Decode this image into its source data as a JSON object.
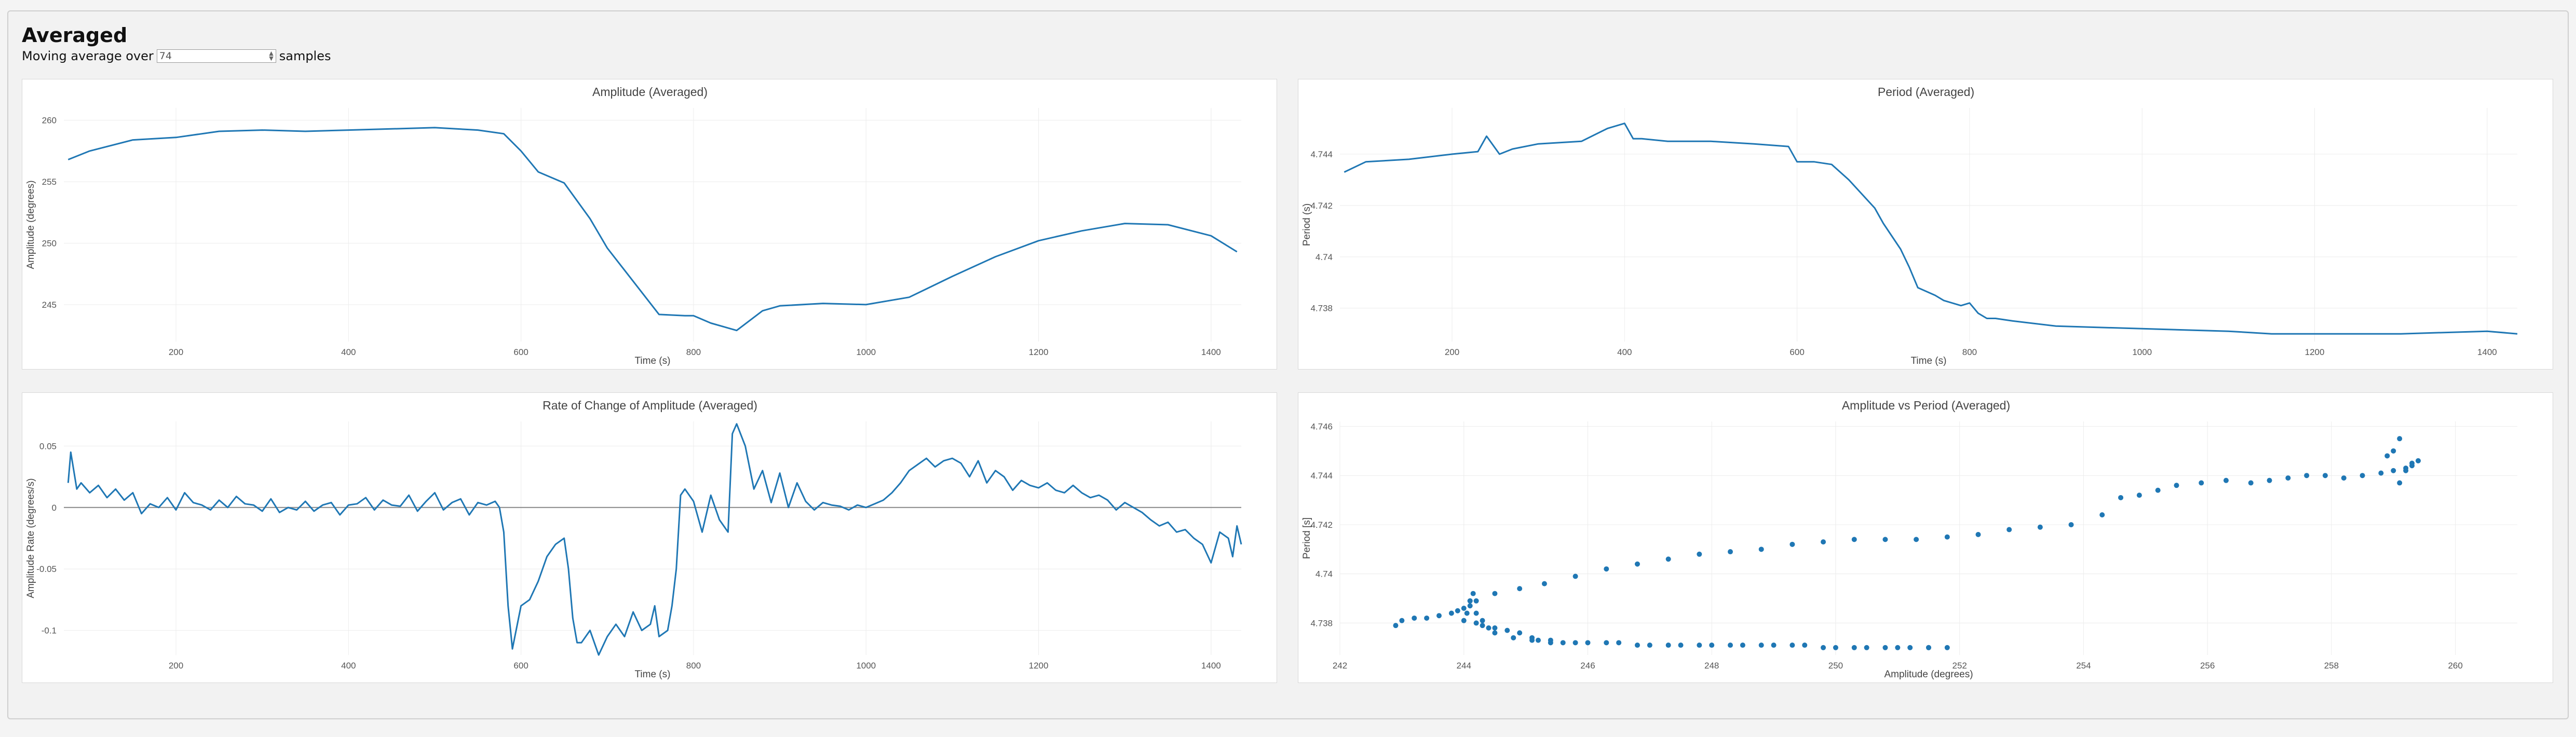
{
  "page": {
    "title": "Averaged"
  },
  "controls": {
    "label_before": "Moving average over",
    "value": "74",
    "label_after": "samples"
  },
  "colors": {
    "series": "#1f77b4",
    "grid": "#ececec",
    "axis_text": "#555"
  },
  "chart_data": [
    {
      "type": "line",
      "title": "Amplitude (Averaged)",
      "xlabel": "Time (s)",
      "ylabel": "Amplitude (degrees)",
      "xlim": [
        70,
        1435
      ],
      "ylim": [
        242,
        261
      ],
      "xticks": [
        200,
        400,
        600,
        800,
        1000,
        1200,
        1400
      ],
      "yticks": [
        245,
        250,
        255,
        260
      ],
      "series": [
        {
          "x": [
            75,
            100,
            150,
            200,
            250,
            300,
            350,
            400,
            450,
            500,
            550,
            580,
            600,
            620,
            650,
            680,
            700,
            720,
            760,
            790,
            800,
            820,
            850,
            880,
            900,
            950,
            1000,
            1050,
            1100,
            1150,
            1200,
            1250,
            1300,
            1350,
            1400,
            1430
          ],
          "y": [
            256.8,
            257.5,
            258.4,
            258.6,
            259.1,
            259.2,
            259.1,
            259.2,
            259.3,
            259.4,
            259.2,
            258.9,
            257.5,
            255.8,
            254.9,
            252.0,
            249.6,
            247.8,
            244.2,
            244.1,
            244.1,
            243.5,
            242.9,
            244.5,
            244.9,
            245.1,
            245.0,
            245.6,
            247.3,
            248.9,
            250.2,
            251.0,
            251.6,
            251.5,
            250.6,
            249.3
          ]
        }
      ]
    },
    {
      "type": "line",
      "title": "Period (Averaged)",
      "xlabel": "Time (s)",
      "ylabel": "Period (s)",
      "xlim": [
        70,
        1435
      ],
      "ylim": [
        4.7367,
        4.7458
      ],
      "xticks": [
        200,
        400,
        600,
        800,
        1000,
        1200,
        1400
      ],
      "yticks": [
        4.738,
        4.74,
        4.742,
        4.744
      ],
      "series": [
        {
          "x": [
            75,
            100,
            150,
            200,
            230,
            240,
            255,
            270,
            300,
            350,
            380,
            400,
            410,
            420,
            450,
            500,
            550,
            590,
            600,
            620,
            640,
            660,
            690,
            700,
            720,
            730,
            740,
            760,
            770,
            790,
            800,
            810,
            820,
            830,
            850,
            900,
            1000,
            1100,
            1150,
            1200,
            1300,
            1400,
            1435
          ],
          "y": [
            4.7433,
            4.7437,
            4.7438,
            4.744,
            4.7441,
            4.7447,
            4.744,
            4.7442,
            4.7444,
            4.7445,
            4.745,
            4.7452,
            4.7446,
            4.7446,
            4.7445,
            4.7445,
            4.7444,
            4.7443,
            4.7437,
            4.7437,
            4.7436,
            4.743,
            4.7419,
            4.7413,
            4.7403,
            4.7396,
            4.7388,
            4.7385,
            4.7383,
            4.7381,
            4.7382,
            4.7378,
            4.7376,
            4.7376,
            4.7375,
            4.7373,
            4.7372,
            4.7371,
            4.737,
            4.737,
            4.737,
            4.7371,
            4.737
          ]
        }
      ]
    },
    {
      "type": "line",
      "title": "Rate of Change of Amplitude (Averaged)",
      "xlabel": "Time (s)",
      "ylabel": "Amplitude Rate (degrees/s)",
      "xlim": [
        70,
        1435
      ],
      "ylim": [
        -0.12,
        0.07
      ],
      "xticks": [
        200,
        400,
        600,
        800,
        1000,
        1200,
        1400
      ],
      "yticks": [
        -0.1,
        -0.05,
        0,
        0.05
      ],
      "zero_line": true,
      "series": [
        {
          "x": [
            75,
            78,
            85,
            90,
            100,
            110,
            120,
            130,
            140,
            150,
            160,
            170,
            180,
            190,
            200,
            210,
            220,
            230,
            240,
            250,
            260,
            270,
            280,
            290,
            300,
            310,
            320,
            330,
            340,
            350,
            360,
            370,
            380,
            390,
            400,
            410,
            420,
            430,
            440,
            450,
            460,
            470,
            480,
            490,
            500,
            510,
            520,
            530,
            540,
            550,
            560,
            570,
            575,
            580,
            585,
            590,
            600,
            610,
            620,
            630,
            640,
            650,
            655,
            660,
            665,
            670,
            680,
            690,
            700,
            710,
            720,
            730,
            740,
            750,
            755,
            760,
            770,
            775,
            780,
            785,
            790,
            800,
            810,
            820,
            830,
            840,
            845,
            850,
            860,
            870,
            880,
            890,
            900,
            910,
            920,
            930,
            940,
            950,
            960,
            970,
            980,
            990,
            1000,
            1010,
            1020,
            1030,
            1040,
            1050,
            1060,
            1070,
            1080,
            1090,
            1100,
            1110,
            1120,
            1130,
            1140,
            1150,
            1160,
            1170,
            1180,
            1190,
            1200,
            1210,
            1220,
            1230,
            1240,
            1250,
            1260,
            1270,
            1280,
            1290,
            1300,
            1310,
            1320,
            1330,
            1340,
            1350,
            1360,
            1370,
            1380,
            1390,
            1400,
            1410,
            1420,
            1425,
            1430,
            1435
          ],
          "y": [
            0.02,
            0.045,
            0.015,
            0.02,
            0.012,
            0.018,
            0.008,
            0.015,
            0.006,
            0.012,
            -0.005,
            0.003,
            0.0,
            0.008,
            -0.002,
            0.012,
            0.004,
            0.002,
            -0.002,
            0.006,
            0.0,
            0.009,
            0.003,
            0.002,
            -0.003,
            0.007,
            -0.004,
            0.0,
            -0.002,
            0.005,
            -0.003,
            0.002,
            0.004,
            -0.006,
            0.002,
            0.003,
            0.008,
            -0.002,
            0.006,
            0.002,
            0.001,
            0.01,
            -0.003,
            0.005,
            0.012,
            -0.002,
            0.004,
            0.007,
            -0.006,
            0.004,
            0.002,
            0.005,
            0.0,
            -0.02,
            -0.08,
            -0.115,
            -0.08,
            -0.075,
            -0.06,
            -0.04,
            -0.03,
            -0.025,
            -0.05,
            -0.09,
            -0.11,
            -0.11,
            -0.1,
            -0.12,
            -0.105,
            -0.095,
            -0.105,
            -0.085,
            -0.1,
            -0.095,
            -0.08,
            -0.105,
            -0.1,
            -0.08,
            -0.05,
            0.01,
            0.015,
            0.005,
            -0.02,
            0.01,
            -0.01,
            -0.02,
            0.06,
            0.068,
            0.05,
            0.015,
            0.03,
            0.004,
            0.028,
            0.0,
            0.02,
            0.005,
            -0.002,
            0.004,
            0.002,
            0.001,
            -0.002,
            0.002,
            0.0,
            0.003,
            0.006,
            0.012,
            0.02,
            0.03,
            0.035,
            0.04,
            0.033,
            0.038,
            0.04,
            0.036,
            0.025,
            0.038,
            0.02,
            0.03,
            0.025,
            0.014,
            0.022,
            0.018,
            0.016,
            0.02,
            0.014,
            0.012,
            0.018,
            0.012,
            0.008,
            0.01,
            0.006,
            -0.002,
            0.004,
            0.0,
            -0.004,
            -0.01,
            -0.015,
            -0.012,
            -0.02,
            -0.018,
            -0.025,
            -0.03,
            -0.045,
            -0.02,
            -0.025,
            -0.04,
            -0.015,
            -0.03
          ]
        }
      ]
    },
    {
      "type": "scatter",
      "title": "Amplitude vs Period (Averaged)",
      "xlabel": "Amplitude (degrees)",
      "ylabel": "Period [s]",
      "xlim": [
        242,
        261
      ],
      "ylim": [
        4.7367,
        4.7462
      ],
      "xticks": [
        242,
        244,
        246,
        248,
        250,
        252,
        254,
        256,
        258,
        260
      ],
      "yticks": [
        4.738,
        4.74,
        4.742,
        4.744,
        4.746
      ],
      "series": [
        {
          "x": [
            242.9,
            243.0,
            243.2,
            243.4,
            243.6,
            243.8,
            243.9,
            244.0,
            244.1,
            244.15,
            244.2,
            244.1,
            244.05,
            244.0,
            244.2,
            244.3,
            244.5,
            244.7,
            244.9,
            245.1,
            245.2,
            245.4,
            245.6,
            246.0,
            246.5,
            247.0,
            247.5,
            248.0,
            248.5,
            249.0,
            249.5,
            250.0,
            250.5,
            251.0,
            251.5,
            251.8,
            251.5,
            251.2,
            250.8,
            250.3,
            249.8,
            249.3,
            248.8,
            248.3,
            247.8,
            247.3,
            246.8,
            246.3,
            245.8,
            245.4,
            245.1,
            244.8,
            244.5,
            244.4,
            244.3,
            244.2,
            244.1,
            244.5,
            244.9,
            245.3,
            245.8,
            246.3,
            246.8,
            247.3,
            247.8,
            248.3,
            248.8,
            249.3,
            249.8,
            250.3,
            250.8,
            251.3,
            251.8,
            252.3,
            252.8,
            253.3,
            253.8,
            254.3,
            254.6,
            254.9,
            255.2,
            255.5,
            255.9,
            256.3,
            256.7,
            257.0,
            257.3,
            257.6,
            257.9,
            258.2,
            258.5,
            258.8,
            259.0,
            259.2,
            259.3,
            259.1,
            258.9,
            259.2,
            259.4,
            259.0,
            259.3,
            259.1
          ],
          "y": [
            4.7379,
            4.7381,
            4.7382,
            4.7382,
            4.7383,
            4.7384,
            4.7385,
            4.7386,
            4.7389,
            4.7392,
            4.7389,
            4.7387,
            4.7384,
            4.7381,
            4.738,
            4.7379,
            4.7378,
            4.7377,
            4.7376,
            4.7374,
            4.7373,
            4.7373,
            4.7372,
            4.7372,
            4.7372,
            4.7371,
            4.7371,
            4.7371,
            4.7371,
            4.7371,
            4.7371,
            4.737,
            4.737,
            4.737,
            4.737,
            4.737,
            4.737,
            4.737,
            4.737,
            4.737,
            4.737,
            4.7371,
            4.7371,
            4.7371,
            4.7371,
            4.7371,
            4.7371,
            4.7372,
            4.7372,
            4.7372,
            4.7373,
            4.7374,
            4.7376,
            4.7378,
            4.7381,
            4.7384,
            4.7389,
            4.7392,
            4.7394,
            4.7396,
            4.7399,
            4.7402,
            4.7404,
            4.7406,
            4.7408,
            4.7409,
            4.741,
            4.7412,
            4.7413,
            4.7414,
            4.7414,
            4.7414,
            4.7415,
            4.7416,
            4.7418,
            4.7419,
            4.742,
            4.7424,
            4.7431,
            4.7432,
            4.7434,
            4.7436,
            4.7437,
            4.7438,
            4.7437,
            4.7438,
            4.7439,
            4.744,
            4.744,
            4.7439,
            4.744,
            4.7441,
            4.7442,
            4.7443,
            4.7445,
            4.7455,
            4.7448,
            4.7442,
            4.7446,
            4.745,
            4.7444,
            4.7437
          ]
        }
      ]
    }
  ]
}
